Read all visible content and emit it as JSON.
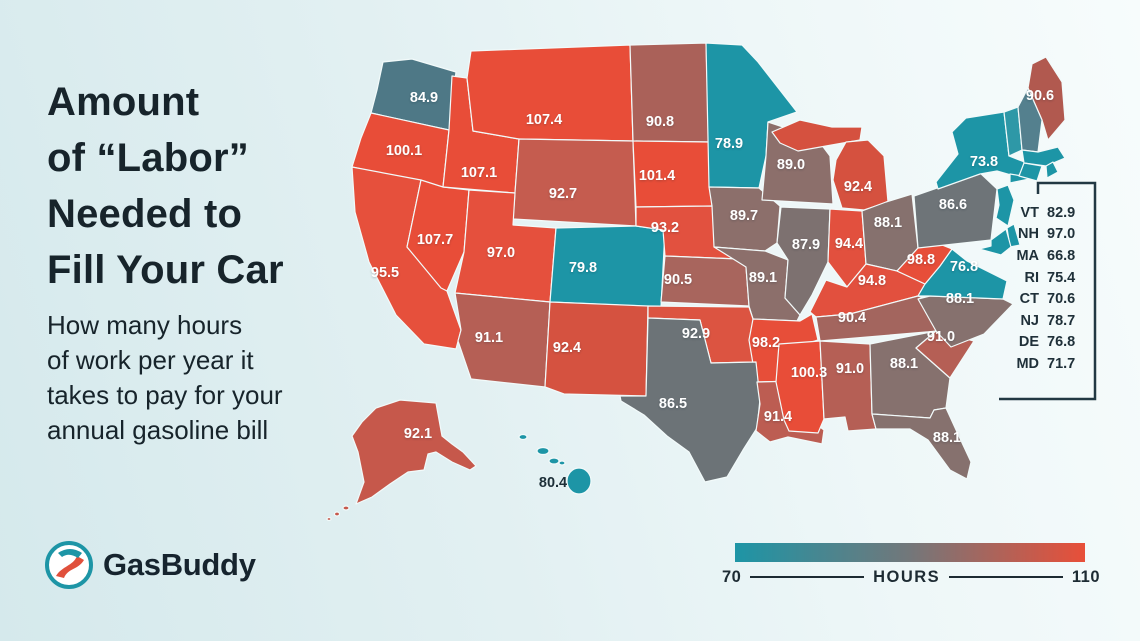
{
  "title": {
    "text": "Amount\nof “Labor”\nNeeded to\nFill Your Car"
  },
  "subtitle": {
    "text": "How many hours\nof work per year it\ntakes to pay for your\nannual gasoline bill"
  },
  "logo": {
    "text": "GasBuddy",
    "ring_color": "#1D95A6",
    "road_color": "#E0503C",
    "wordmark_color": "#16242E"
  },
  "legend": {
    "min_label": "70",
    "unit_label": "HOURS",
    "max_label": "110",
    "gradient": [
      "#1D95A6",
      "#73777A",
      "#E84F39"
    ]
  },
  "northeast_box": {
    "entries": [
      {
        "code": "VT",
        "value": "82.9"
      },
      {
        "code": "NH",
        "value": "97.0"
      },
      {
        "code": "MA",
        "value": "66.8"
      },
      {
        "code": "RI",
        "value": "75.4"
      },
      {
        "code": "CT",
        "value": "70.6"
      },
      {
        "code": "NJ",
        "value": "78.7"
      },
      {
        "code": "DE",
        "value": "76.8"
      },
      {
        "code": "MD",
        "value": "71.7"
      }
    ]
  },
  "map": {
    "states": [
      {
        "code": "WA",
        "value": "84.9",
        "color": "#4E7886",
        "label": true
      },
      {
        "code": "OR",
        "value": "100.1",
        "color": "#E84D38",
        "label": true
      },
      {
        "code": "CA",
        "value": "95.5",
        "color": "#E6503C",
        "label": true
      },
      {
        "code": "NV",
        "value": "107.7",
        "color": "#E84D38",
        "label": true
      },
      {
        "code": "ID",
        "value": "107.1",
        "color": "#E84D38",
        "label": true
      },
      {
        "code": "MT",
        "value": "107.4",
        "color": "#E84D38",
        "label": true
      },
      {
        "code": "WY",
        "value": "92.7",
        "color": "#C55C4F",
        "label": true
      },
      {
        "code": "UT",
        "value": "97.0",
        "color": "#E5503D",
        "label": true
      },
      {
        "code": "CO",
        "value": "79.8",
        "color": "#1D95A6",
        "label": true
      },
      {
        "code": "AZ",
        "value": "91.1",
        "color": "#B55F55",
        "label": true
      },
      {
        "code": "NM",
        "value": "92.4",
        "color": "#D55240",
        "label": true
      },
      {
        "code": "ND",
        "value": "90.8",
        "color": "#AA6159",
        "label": true
      },
      {
        "code": "SD",
        "value": "101.4",
        "color": "#E84D38",
        "label": true
      },
      {
        "code": "NE",
        "value": "93.2",
        "color": "#E2513F",
        "label": true
      },
      {
        "code": "KS",
        "value": "90.5",
        "color": "#A8655D",
        "label": true
      },
      {
        "code": "MN",
        "value": "78.9",
        "color": "#1D95A6",
        "label": true
      },
      {
        "code": "IA",
        "value": "89.7",
        "color": "#8C6F6B",
        "label": true
      },
      {
        "code": "MO",
        "value": "89.1",
        "color": "#8C6F6B",
        "label": true
      },
      {
        "code": "WI",
        "value": "89.0",
        "color": "#8C6F6B",
        "label": true
      },
      {
        "code": "IL",
        "value": "87.9",
        "color": "#7D7170",
        "label": true
      },
      {
        "code": "MI",
        "value": "92.4",
        "color": "#D5513F",
        "label": true
      },
      {
        "code": "IN",
        "value": "94.4",
        "color": "#E2503E",
        "label": true
      },
      {
        "code": "OH",
        "value": "88.1",
        "color": "#86716E",
        "label": true
      },
      {
        "code": "KY",
        "value": "94.8",
        "color": "#E2503E",
        "label": true
      },
      {
        "code": "TN",
        "value": "90.4",
        "color": "#A3655E",
        "label": true
      },
      {
        "code": "OK",
        "value": "92.9",
        "color": "#DC5441",
        "label": true
      },
      {
        "code": "AR",
        "value": "98.2",
        "color": "#E74E39",
        "label": true
      },
      {
        "code": "TX",
        "value": "86.5",
        "color": "#6C7377",
        "label": true
      },
      {
        "code": "LA",
        "value": "91.4",
        "color": "#BC5D52",
        "label": true
      },
      {
        "code": "MS",
        "value": "100.3",
        "color": "#E84D38",
        "label": true
      },
      {
        "code": "AL",
        "value": "91.0",
        "color": "#B55F55",
        "label": true
      },
      {
        "code": "GA",
        "value": "88.1",
        "color": "#86716E",
        "label": true
      },
      {
        "code": "FL",
        "value": "88.1",
        "color": "#86716E",
        "label": true
      },
      {
        "code": "SC",
        "value": "91.0",
        "color": "#B55F55",
        "label": true
      },
      {
        "code": "NC",
        "value": "88.1",
        "color": "#86716E",
        "label": true
      },
      {
        "code": "VA",
        "value": "76.8",
        "color": "#1D95A6",
        "label": true
      },
      {
        "code": "WV",
        "value": "98.8",
        "color": "#E74E39",
        "label": true
      },
      {
        "code": "PA",
        "value": "86.6",
        "color": "#6E7478",
        "label": true
      },
      {
        "code": "NY",
        "value": "73.8",
        "color": "#1D95A6",
        "label": true
      },
      {
        "code": "ME",
        "value": "90.6",
        "color": "#B1594F",
        "label": true
      },
      {
        "code": "VT",
        "value": "82.9",
        "color": "#2E98A7",
        "label": false
      },
      {
        "code": "NH",
        "value": "97.0",
        "color": "#54808E",
        "label": false
      },
      {
        "code": "MA",
        "value": "66.8",
        "color": "#1D95A6",
        "label": false
      },
      {
        "code": "CT",
        "value": "70.6",
        "color": "#1D95A6",
        "label": false
      },
      {
        "code": "RI",
        "value": "75.4",
        "color": "#1D95A6",
        "label": false
      },
      {
        "code": "NJ",
        "value": "78.7",
        "color": "#1D95A6",
        "label": false
      },
      {
        "code": "DE",
        "value": "76.8",
        "color": "#1D95A6",
        "label": false
      },
      {
        "code": "MD",
        "value": "71.7",
        "color": "#1D95A6",
        "label": false
      },
      {
        "code": "AK",
        "value": "92.1",
        "color": "#C6584B",
        "label": true
      },
      {
        "code": "HI",
        "value": "80.4",
        "color": "#1D95A6",
        "label": true
      }
    ]
  },
  "chart_data": {
    "type": "heatmap",
    "title": "Amount of “Labor” Needed to Fill Your Car",
    "subtitle": "How many hours of work per year it takes to pay for your annual gasoline bill",
    "unit": "HOURS",
    "scale": {
      "min": 70,
      "max": 110,
      "colors": [
        "#1D95A6",
        "#73777A",
        "#E84F39"
      ],
      "legend_position": "bottom-right"
    },
    "categories": [
      "AK",
      "AL",
      "AR",
      "AZ",
      "CA",
      "CO",
      "CT",
      "DE",
      "FL",
      "GA",
      "HI",
      "IA",
      "ID",
      "IL",
      "IN",
      "KS",
      "KY",
      "LA",
      "MA",
      "MD",
      "ME",
      "MI",
      "MN",
      "MO",
      "MS",
      "MT",
      "NC",
      "ND",
      "NE",
      "NH",
      "NJ",
      "NM",
      "NV",
      "NY",
      "OH",
      "OK",
      "OR",
      "PA",
      "RI",
      "SC",
      "SD",
      "TN",
      "TX",
      "UT",
      "VA",
      "VT",
      "WA",
      "WI",
      "WV",
      "WY"
    ],
    "values": [
      92.1,
      91.0,
      98.2,
      91.1,
      95.5,
      79.8,
      70.6,
      76.8,
      88.1,
      88.1,
      80.4,
      89.7,
      107.1,
      87.9,
      94.4,
      90.5,
      94.8,
      91.4,
      66.8,
      71.7,
      90.6,
      92.4,
      78.9,
      89.1,
      100.3,
      107.4,
      88.1,
      90.8,
      93.2,
      97.0,
      78.7,
      92.4,
      107.7,
      73.8,
      88.1,
      92.9,
      100.1,
      86.6,
      75.4,
      91.0,
      101.4,
      90.4,
      86.5,
      97.0,
      76.8,
      82.9,
      84.9,
      89.0,
      98.8,
      92.7
    ]
  }
}
